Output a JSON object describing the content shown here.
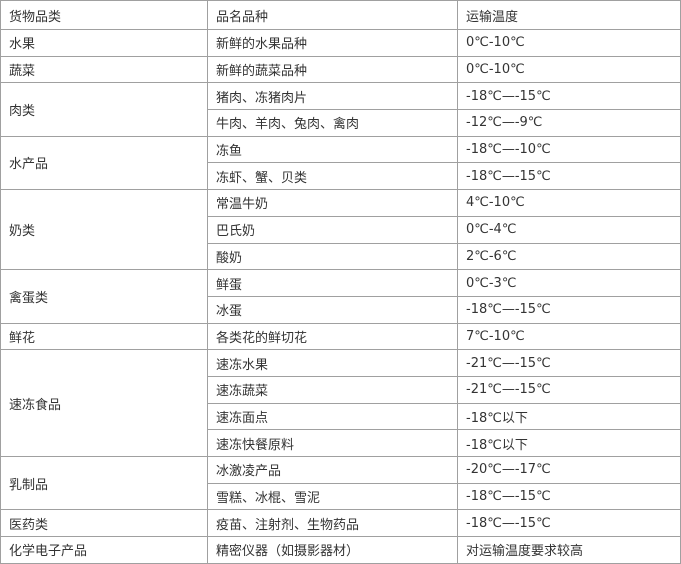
{
  "table": {
    "header": [
      "货物品类",
      "品名品种",
      "运输温度"
    ],
    "groups": [
      {
        "category": "水果",
        "items": [
          {
            "name": "新鲜的水果品种",
            "temp": "0℃-10℃"
          }
        ]
      },
      {
        "category": "蔬菜",
        "items": [
          {
            "name": "新鲜的蔬菜品种",
            "temp": "0℃-10℃"
          }
        ]
      },
      {
        "category": "肉类",
        "items": [
          {
            "name": "猪肉、冻猪肉片",
            "temp": "-18℃—-15℃"
          },
          {
            "name": "牛肉、羊肉、兔肉、禽肉",
            "temp": "-12℃—-9℃"
          }
        ]
      },
      {
        "category": "水产品",
        "items": [
          {
            "name": "冻鱼",
            "temp": "-18℃—-10℃"
          },
          {
            "name": "冻虾、蟹、贝类",
            "temp": "-18℃—-15℃"
          }
        ]
      },
      {
        "category": "奶类",
        "items": [
          {
            "name": "常温牛奶",
            "temp": "4℃-10℃"
          },
          {
            "name": "巴氏奶",
            "temp": "0℃-4℃"
          },
          {
            "name": "酸奶",
            "temp": "2℃-6℃"
          }
        ]
      },
      {
        "category": "禽蛋类",
        "items": [
          {
            "name": "鲜蛋",
            "temp": "0℃-3℃"
          },
          {
            "name": "冰蛋",
            "temp": "-18℃—-15℃"
          }
        ]
      },
      {
        "category": "鲜花",
        "items": [
          {
            "name": "各类花的鲜切花",
            "temp": "7℃-10℃"
          }
        ]
      },
      {
        "category": "速冻食品",
        "items": [
          {
            "name": "速冻水果",
            "temp": "-21℃—-15℃"
          },
          {
            "name": "速冻蔬菜",
            "temp": "-21℃—-15℃"
          },
          {
            "name": "速冻面点",
            "temp": "-18℃以下"
          },
          {
            "name": "速冻快餐原料",
            "temp": "-18℃以下"
          }
        ]
      },
      {
        "category": "乳制品",
        "items": [
          {
            "name": "冰激凌产品",
            "temp": "-20℃—-17℃"
          },
          {
            "name": "雪糕、冰棍、雪泥",
            "temp": "-18℃—-15℃"
          }
        ]
      },
      {
        "category": "医药类",
        "items": [
          {
            "name": "疫苗、注射剂、生物药品",
            "temp": "-18℃—-15℃"
          }
        ]
      },
      {
        "category": "化学电子产品",
        "items": [
          {
            "name": "精密仪器（如摄影器材）",
            "temp": "对运输温度要求较高"
          }
        ]
      }
    ]
  }
}
